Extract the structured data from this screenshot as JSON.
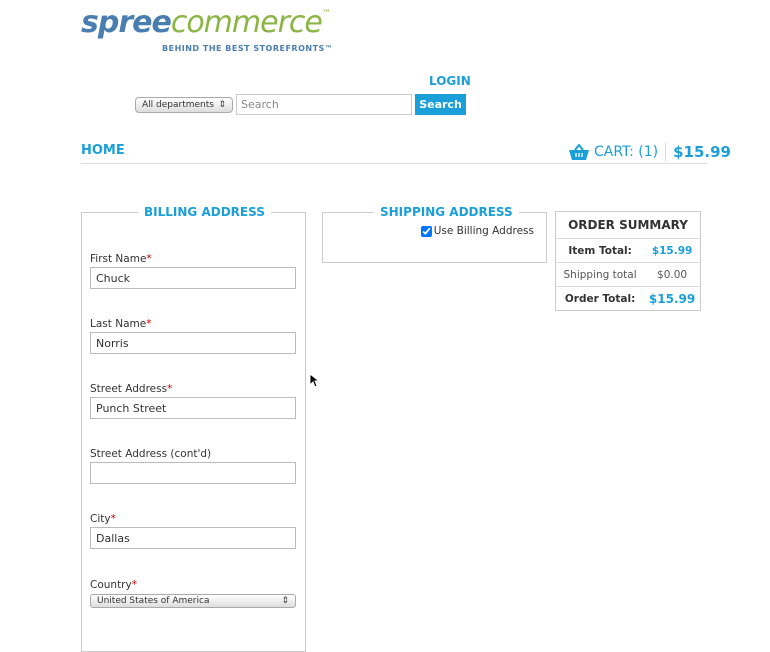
{
  "logo": {
    "part1": "spree",
    "part2": "commerce",
    "tm": "™",
    "tagline": "BEHIND THE BEST STOREFRONTS™"
  },
  "header": {
    "login": "LOGIN",
    "department": "All departments",
    "search_placeholder": "Search",
    "search_button": "Search",
    "home": "HOME",
    "cart_label": "CART: (1)",
    "cart_total": "$15.99"
  },
  "billing": {
    "title": "BILLING ADDRESS",
    "fields": [
      {
        "label": "First Name",
        "required": "*",
        "value": "Chuck"
      },
      {
        "label": "Last Name",
        "required": "*",
        "value": "Norris"
      },
      {
        "label": "Street Address",
        "required": "*",
        "value": "Punch Street"
      },
      {
        "label": "Street Address (cont'd)",
        "required": "",
        "value": ""
      },
      {
        "label": "City",
        "required": "*",
        "value": "Dallas"
      },
      {
        "label": "Country",
        "required": "*",
        "value": "United States of America"
      }
    ]
  },
  "shipping": {
    "title": "SHIPPING ADDRESS",
    "use_billing": "Use Billing Address",
    "use_billing_checked": true
  },
  "summary": {
    "title": "ORDER SUMMARY",
    "item_total_label": "Item Total:",
    "item_total": "$15.99",
    "shipping_label": "Shipping total",
    "shipping": "$0.00",
    "order_total_label": "Order Total:",
    "order_total": "$15.99"
  },
  "colors": {
    "accent": "#1a9fd8",
    "logo_blue": "#4a7eb0",
    "logo_green": "#8bb545"
  }
}
